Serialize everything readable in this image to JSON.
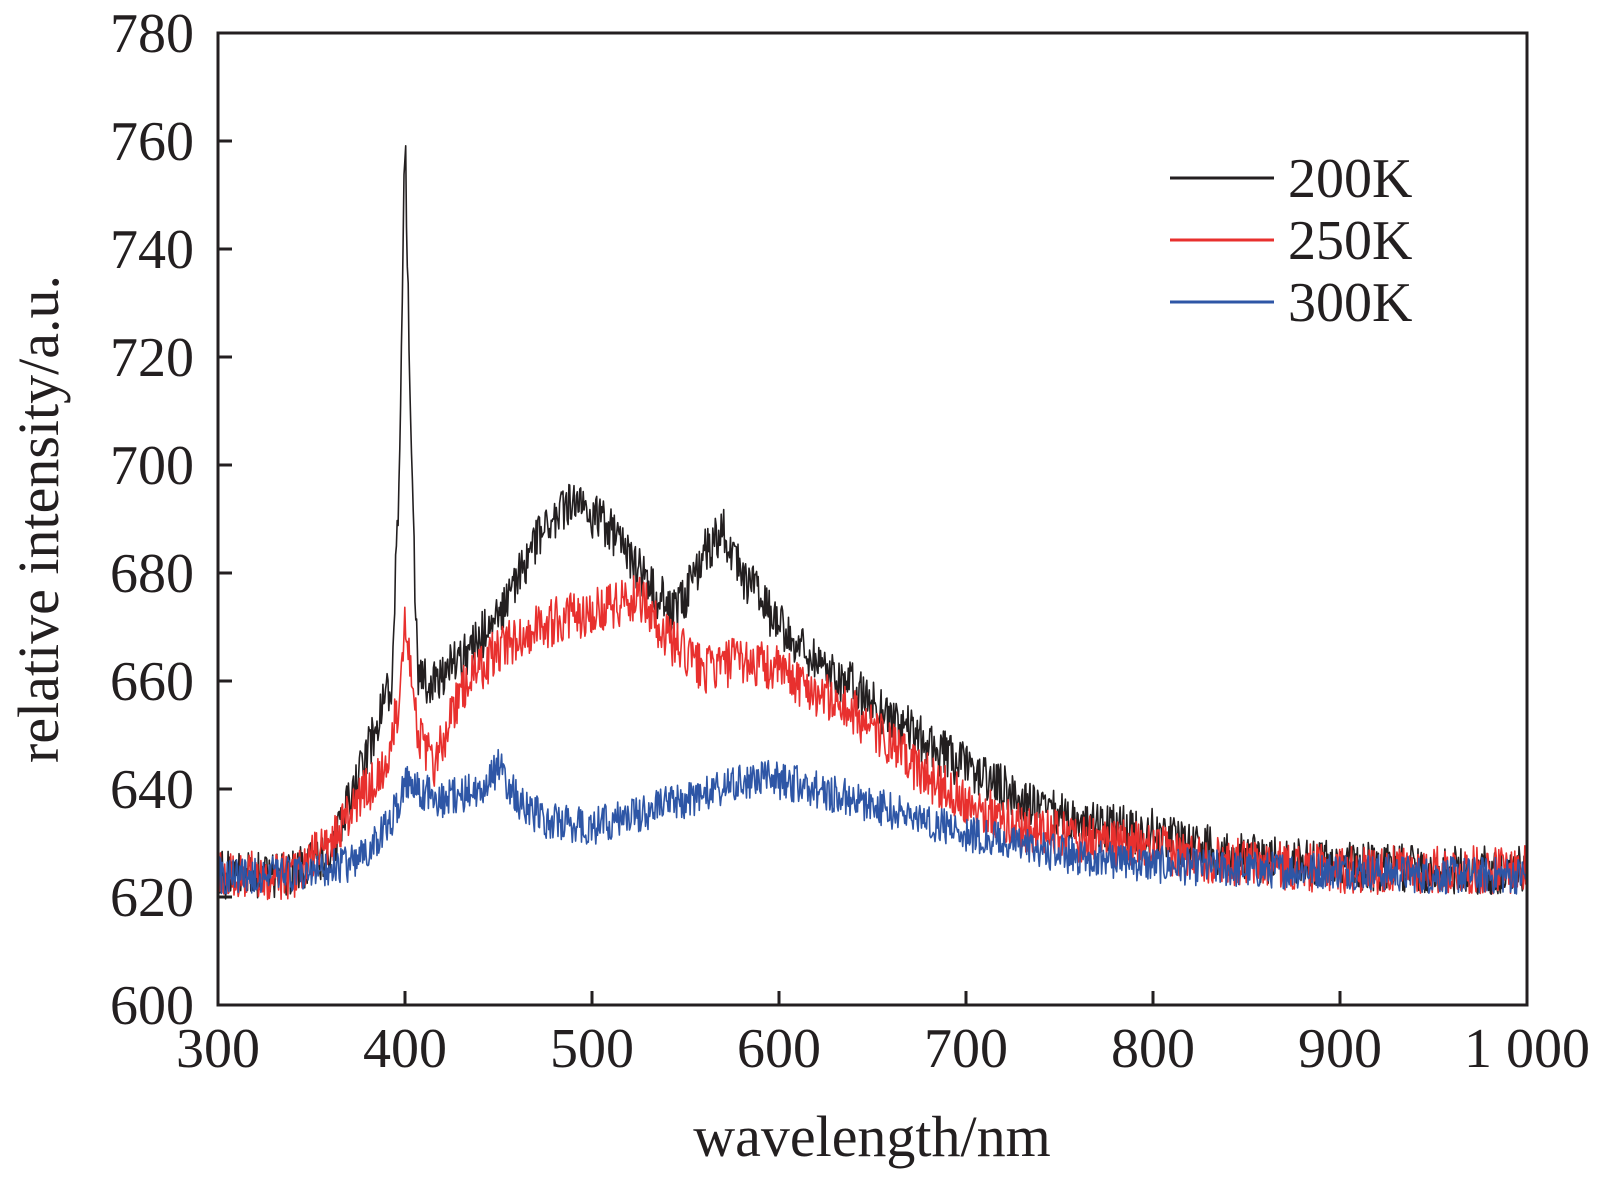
{
  "chart_data": {
    "type": "line",
    "title": "",
    "xlabel": "wavelength/nm",
    "ylabel": "relative intensity/a.u.",
    "xlim": [
      300,
      1000
    ],
    "ylim": [
      600,
      780
    ],
    "xticks": [
      300,
      400,
      500,
      600,
      700,
      800,
      900,
      1000
    ],
    "xtick_labels": [
      "300",
      "400",
      "500",
      "600",
      "700",
      "800",
      "900",
      "1 000"
    ],
    "yticks": [
      600,
      620,
      640,
      660,
      680,
      700,
      720,
      740,
      760,
      780
    ],
    "ytick_labels": [
      "600",
      "620",
      "640",
      "660",
      "680",
      "700",
      "720",
      "740",
      "760",
      "780"
    ],
    "legend_position": "top-right",
    "series": [
      {
        "name": "200K",
        "color": "#231f20",
        "noise": 4.5,
        "x": [
          300,
          340,
          360,
          375,
          385,
          393,
          397,
          400,
          403,
          407,
          415,
          430,
          450,
          470,
          490,
          510,
          530,
          545,
          560,
          570,
          580,
          600,
          620,
          650,
          680,
          710,
          740,
          770,
          800,
          830,
          860,
          900,
          950,
          1000
        ],
        "y": [
          624,
          624,
          628,
          642,
          652,
          660,
          700,
          762,
          705,
          660,
          660,
          664,
          672,
          686,
          693,
          688,
          678,
          672,
          684,
          688,
          680,
          670,
          664,
          656,
          648,
          642,
          636,
          633,
          632,
          629,
          627,
          626,
          625,
          625
        ]
      },
      {
        "name": "250K",
        "color": "#e8302e",
        "noise": 4.5,
        "x": [
          300,
          340,
          360,
          375,
          390,
          396,
          400,
          403,
          407,
          415,
          430,
          450,
          470,
          490,
          510,
          525,
          540,
          560,
          580,
          600,
          620,
          640,
          660,
          680,
          700,
          720,
          740,
          760,
          780,
          800,
          830,
          860,
          900,
          950,
          1000
        ],
        "y": [
          624,
          624,
          630,
          638,
          644,
          655,
          672,
          664,
          650,
          644,
          658,
          666,
          670,
          672,
          674,
          676,
          668,
          662,
          664,
          662,
          658,
          654,
          648,
          642,
          638,
          634,
          632,
          631,
          630,
          629,
          627,
          626,
          625,
          625,
          625
        ]
      },
      {
        "name": "300K",
        "color": "#2e56a6",
        "noise": 3.5,
        "x": [
          300,
          340,
          370,
          385,
          395,
          400,
          405,
          420,
          440,
          450,
          460,
          475,
          500,
          530,
          560,
          590,
          610,
          640,
          660,
          680,
          710,
          750,
          800,
          850,
          900,
          950,
          1000
        ],
        "y": [
          624,
          624,
          626,
          630,
          636,
          642,
          640,
          638,
          640,
          644,
          638,
          634,
          633,
          636,
          639,
          642,
          641,
          638,
          636,
          634,
          631,
          628,
          626,
          625,
          625,
          624,
          624
        ]
      }
    ]
  }
}
